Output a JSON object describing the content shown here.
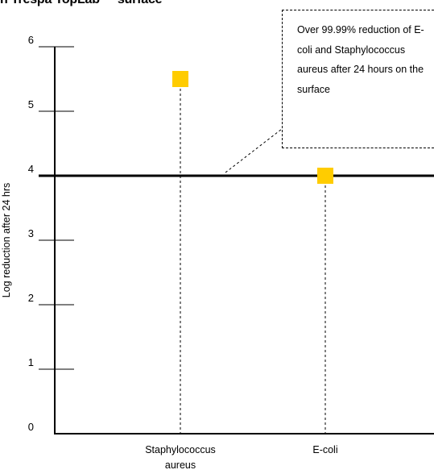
{
  "title": {
    "part1": "n Trespa TopLab",
    "part2": "surface"
  },
  "chart_data": {
    "type": "scatter",
    "title": "",
    "xlabel": "",
    "ylabel": "Log reduction after 24 hrs",
    "ylim": [
      0,
      6
    ],
    "yticks": [
      "0",
      "1",
      "2",
      "3",
      "4",
      "5",
      "6"
    ],
    "categories": [
      "Staphylococcus aureus",
      "E-coli"
    ],
    "values": [
      5.5,
      4
    ],
    "point_color": "#FFCC00",
    "reference_line": 4,
    "annotation": "Over 99.99% reduction of E-coli and Staphylococcus aureus after 24 hours on the surface",
    "grid": false
  }
}
